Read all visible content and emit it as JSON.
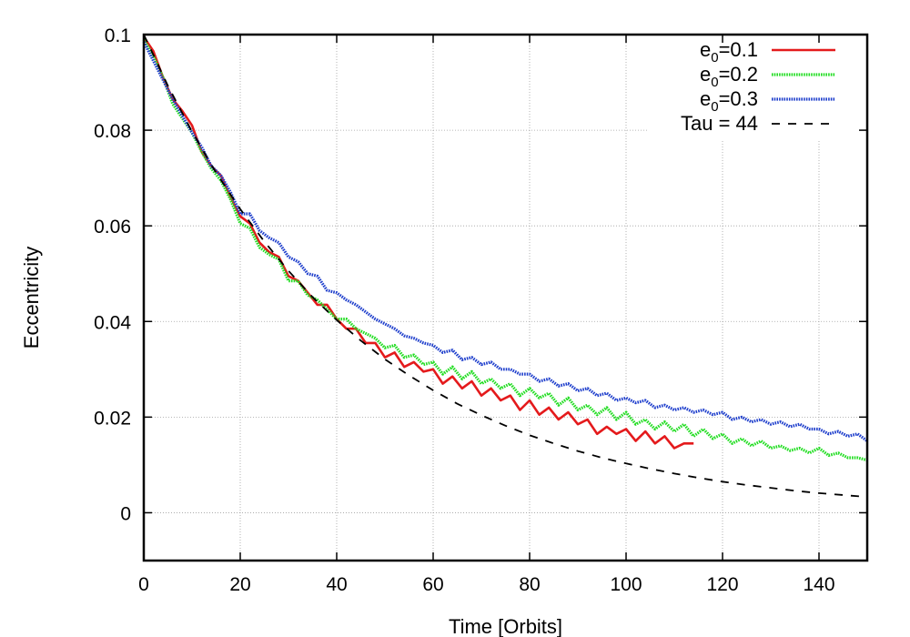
{
  "chart_data": {
    "type": "line",
    "title": "",
    "xlabel": "Time [Orbits]",
    "ylabel": "Eccentricity",
    "xlim": [
      0,
      150
    ],
    "ylim": [
      -0.01,
      0.1
    ],
    "x_ticks": [
      0,
      20,
      40,
      60,
      80,
      100,
      120,
      140
    ],
    "x_tick_labels": [
      "0",
      "20",
      "40",
      "60",
      "80",
      "100",
      "120",
      "140"
    ],
    "y_ticks": [
      0,
      0.02,
      0.04,
      0.06,
      0.08,
      0.1
    ],
    "y_tick_labels": [
      "0",
      "0.02",
      "0.04",
      "0.06",
      "0.08",
      "0.1"
    ],
    "grid": true,
    "legend_position": "top-right",
    "series": [
      {
        "name_base": "e",
        "name_sub": "0",
        "name_rest": "=0.1",
        "color": "#e41a1c",
        "style": "solid",
        "x": [
          0,
          2,
          4,
          6,
          8,
          10,
          12,
          14,
          16,
          18,
          20,
          22,
          24,
          26,
          28,
          30,
          32,
          34,
          36,
          38,
          40,
          42,
          44,
          46,
          48,
          50,
          52,
          54,
          56,
          58,
          60,
          62,
          64,
          66,
          68,
          70,
          72,
          74,
          76,
          78,
          80,
          82,
          84,
          86,
          88,
          90,
          92,
          94,
          96,
          98,
          100,
          102,
          104,
          106,
          108,
          110,
          112,
          114
        ],
        "y": [
          0.0995,
          0.0965,
          0.091,
          0.0865,
          0.084,
          0.081,
          0.0755,
          0.0725,
          0.0705,
          0.066,
          0.062,
          0.0605,
          0.0565,
          0.0545,
          0.0535,
          0.0495,
          0.0485,
          0.046,
          0.0435,
          0.0435,
          0.0405,
          0.0385,
          0.0385,
          0.0355,
          0.0355,
          0.0325,
          0.0335,
          0.0305,
          0.0315,
          0.0295,
          0.03,
          0.027,
          0.0285,
          0.026,
          0.0275,
          0.0245,
          0.026,
          0.0235,
          0.0245,
          0.0215,
          0.0235,
          0.0205,
          0.022,
          0.0195,
          0.021,
          0.0185,
          0.0195,
          0.0165,
          0.018,
          0.0165,
          0.0175,
          0.015,
          0.017,
          0.0145,
          0.016,
          0.0135,
          0.0145,
          0.0145
        ]
      },
      {
        "name_base": "e",
        "name_sub": "0",
        "name_rest": "=0.2",
        "color": "#22dd22",
        "style": "dotted",
        "x": [
          0,
          2,
          4,
          6,
          8,
          10,
          12,
          14,
          16,
          18,
          20,
          22,
          24,
          26,
          28,
          30,
          32,
          34,
          36,
          38,
          40,
          42,
          44,
          46,
          48,
          50,
          52,
          54,
          56,
          58,
          60,
          62,
          64,
          66,
          68,
          70,
          72,
          74,
          76,
          78,
          80,
          82,
          84,
          86,
          88,
          90,
          92,
          94,
          96,
          98,
          100,
          102,
          104,
          106,
          108,
          110,
          112,
          114,
          116,
          118,
          120,
          122,
          124,
          126,
          128,
          130,
          132,
          134,
          136,
          138,
          140,
          142,
          144,
          146,
          148,
          150
        ],
        "y": [
          0.099,
          0.0955,
          0.091,
          0.0855,
          0.0825,
          0.0795,
          0.0755,
          0.072,
          0.0695,
          0.0655,
          0.0605,
          0.0595,
          0.0555,
          0.054,
          0.053,
          0.0485,
          0.0485,
          0.0455,
          0.0445,
          0.0425,
          0.0405,
          0.0405,
          0.0385,
          0.0375,
          0.0365,
          0.0345,
          0.035,
          0.0325,
          0.033,
          0.031,
          0.0315,
          0.029,
          0.0305,
          0.028,
          0.0295,
          0.027,
          0.028,
          0.026,
          0.027,
          0.0245,
          0.026,
          0.024,
          0.025,
          0.0225,
          0.024,
          0.0215,
          0.0225,
          0.0205,
          0.022,
          0.0195,
          0.021,
          0.0185,
          0.0195,
          0.0175,
          0.019,
          0.017,
          0.0185,
          0.016,
          0.0175,
          0.0155,
          0.0165,
          0.0145,
          0.0155,
          0.014,
          0.015,
          0.0135,
          0.014,
          0.013,
          0.0135,
          0.0125,
          0.0135,
          0.012,
          0.0125,
          0.0115,
          0.0115,
          0.011
        ]
      },
      {
        "name_base": "e",
        "name_sub": "0",
        "name_rest": "=0.3",
        "color": "#1f3fcc",
        "style": "dotted",
        "x": [
          0,
          2,
          4,
          6,
          8,
          10,
          12,
          14,
          16,
          18,
          20,
          22,
          24,
          26,
          28,
          30,
          32,
          34,
          36,
          38,
          40,
          42,
          44,
          46,
          48,
          50,
          52,
          54,
          56,
          58,
          60,
          62,
          64,
          66,
          68,
          70,
          72,
          74,
          76,
          78,
          80,
          82,
          84,
          86,
          88,
          90,
          92,
          94,
          96,
          98,
          100,
          102,
          104,
          106,
          108,
          110,
          112,
          114,
          116,
          118,
          120,
          122,
          124,
          126,
          128,
          130,
          132,
          134,
          136,
          138,
          140,
          142,
          144,
          146,
          148,
          150
        ],
        "y": [
          0.0985,
          0.0945,
          0.0905,
          0.0865,
          0.083,
          0.0795,
          0.0765,
          0.0725,
          0.0705,
          0.067,
          0.0625,
          0.0625,
          0.059,
          0.0575,
          0.0565,
          0.0535,
          0.0525,
          0.05,
          0.0495,
          0.0465,
          0.046,
          0.0445,
          0.0435,
          0.042,
          0.0405,
          0.0395,
          0.0385,
          0.037,
          0.0365,
          0.0355,
          0.035,
          0.0335,
          0.034,
          0.032,
          0.0325,
          0.031,
          0.0315,
          0.03,
          0.03,
          0.029,
          0.029,
          0.0275,
          0.028,
          0.0265,
          0.027,
          0.0255,
          0.026,
          0.0245,
          0.025,
          0.0235,
          0.024,
          0.023,
          0.0235,
          0.022,
          0.0225,
          0.0215,
          0.022,
          0.021,
          0.0215,
          0.0205,
          0.021,
          0.0195,
          0.02,
          0.019,
          0.0195,
          0.0185,
          0.019,
          0.018,
          0.0185,
          0.0175,
          0.0175,
          0.0165,
          0.017,
          0.016,
          0.0165,
          0.015
        ]
      },
      {
        "name": "Tau = 44",
        "color": "#000000",
        "style": "dashed",
        "x": [
          0,
          5,
          10,
          15,
          20,
          25,
          30,
          35,
          40,
          45,
          50,
          55,
          60,
          65,
          70,
          75,
          80,
          85,
          90,
          95,
          100,
          105,
          110,
          115,
          120,
          125,
          130,
          135,
          140,
          145,
          150
        ],
        "y": [
          0.1,
          0.0893,
          0.0797,
          0.0711,
          0.0635,
          0.0567,
          0.0506,
          0.0451,
          0.0403,
          0.036,
          0.0321,
          0.0287,
          0.0256,
          0.0228,
          0.0204,
          0.0182,
          0.0162,
          0.0145,
          0.0129,
          0.0115,
          0.0103,
          0.0092,
          0.0082,
          0.0073,
          0.0065,
          0.0058,
          0.0052,
          0.0046,
          0.0041,
          0.0037,
          0.0033
        ]
      }
    ]
  }
}
